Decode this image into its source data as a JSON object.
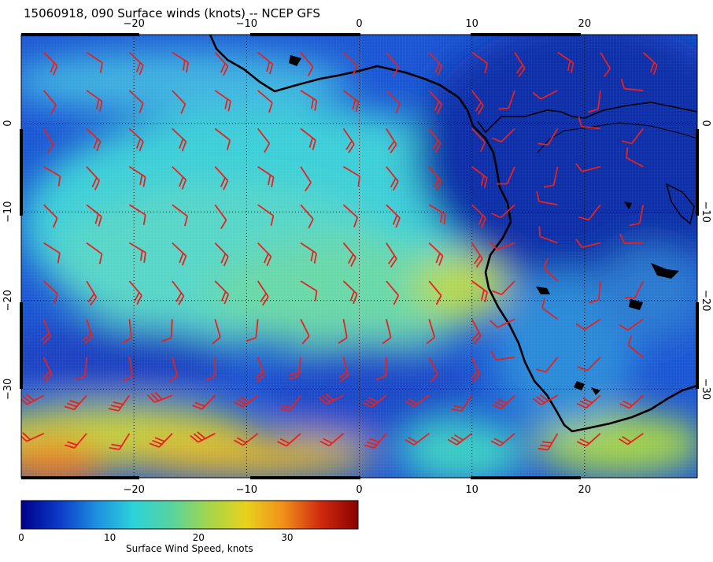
{
  "title": "15060918, 090 Surface winds (knots) -- NCEP GFS",
  "map": {
    "lon_ticks": [
      "−20",
      "−10",
      "0",
      "10",
      "20"
    ],
    "lat_ticks": [
      "0",
      "−10",
      "−20",
      "−30"
    ],
    "lon_range": [
      -30,
      30
    ],
    "lat_range": [
      -40,
      10
    ],
    "coastline_color": "#000000",
    "barb_color": "#e8201e",
    "grid": true
  },
  "colorbar": {
    "title": "Surface Wind Speed, knots",
    "ticks": [
      "0",
      "10",
      "20",
      "30"
    ],
    "range": [
      0,
      38
    ],
    "colors": [
      "#00008b",
      "#0b39c8",
      "#1e8ee0",
      "#2cd3d8",
      "#56d3a0",
      "#a3d64c",
      "#e8d21c",
      "#f0901a",
      "#d02a0e",
      "#8b0000"
    ]
  }
}
